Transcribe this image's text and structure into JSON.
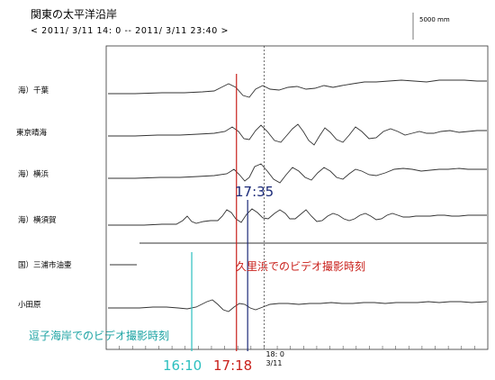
{
  "chart_data": {
    "type": "line",
    "title": "関東の太平洋沿岸",
    "subtitle": "< 2011/ 3/11 14: 0 -- 2011/ 3/11 23:40 >",
    "xlabel": "",
    "ylabel": "",
    "xlim": [
      "2011/3/11 14:00",
      "2011/3/11 23:40"
    ],
    "tick_label_time": "18: 0",
    "tick_label_date": "3/11",
    "tick_time": "18:00",
    "scale_label": "5000 mm",
    "grid": false,
    "stations": [
      {
        "name": "海）千葉"
      },
      {
        "name": "東京晴海"
      },
      {
        "name": "海）横浜"
      },
      {
        "name": "海）横須賀"
      },
      {
        "name": "国）三浦市油壷"
      },
      {
        "name": "小田原"
      }
    ],
    "markers": [
      {
        "time": "16:10",
        "label": "16:10",
        "color": "#2bbfbf"
      },
      {
        "time": "17:18",
        "label": "17:18",
        "color": "#c9201b"
      },
      {
        "time": "17:35",
        "label": "17:35",
        "color": "#1b2a78"
      }
    ],
    "annotations": [
      {
        "text": "久里浜でのビデオ撮影時刻",
        "color": "#c9201b"
      },
      {
        "text": "逗子海岸でのビデオ撮影時刻",
        "color": "#1ca3a3"
      }
    ]
  }
}
